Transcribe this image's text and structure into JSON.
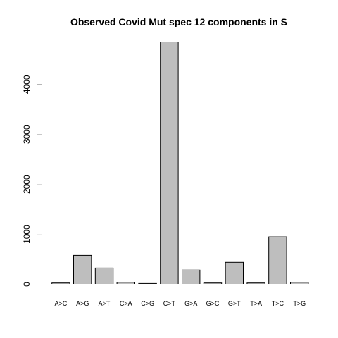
{
  "chart_data": {
    "type": "bar",
    "title": "Observed Covid Mut spec 12 components in S",
    "xlabel": "",
    "ylabel": "",
    "categories": [
      "A>C",
      "A>G",
      "A>T",
      "C>A",
      "C>G",
      "C>T",
      "G>A",
      "G>C",
      "G>T",
      "T>A",
      "T>C",
      "T>G"
    ],
    "values": [
      25,
      580,
      325,
      40,
      15,
      4850,
      285,
      25,
      440,
      25,
      950,
      40
    ],
    "ylim": [
      0,
      4850
    ],
    "yticks": [
      0,
      1000,
      2000,
      3000,
      4000
    ],
    "bar_color": "#bebebe",
    "grid": false,
    "legend": "none"
  }
}
